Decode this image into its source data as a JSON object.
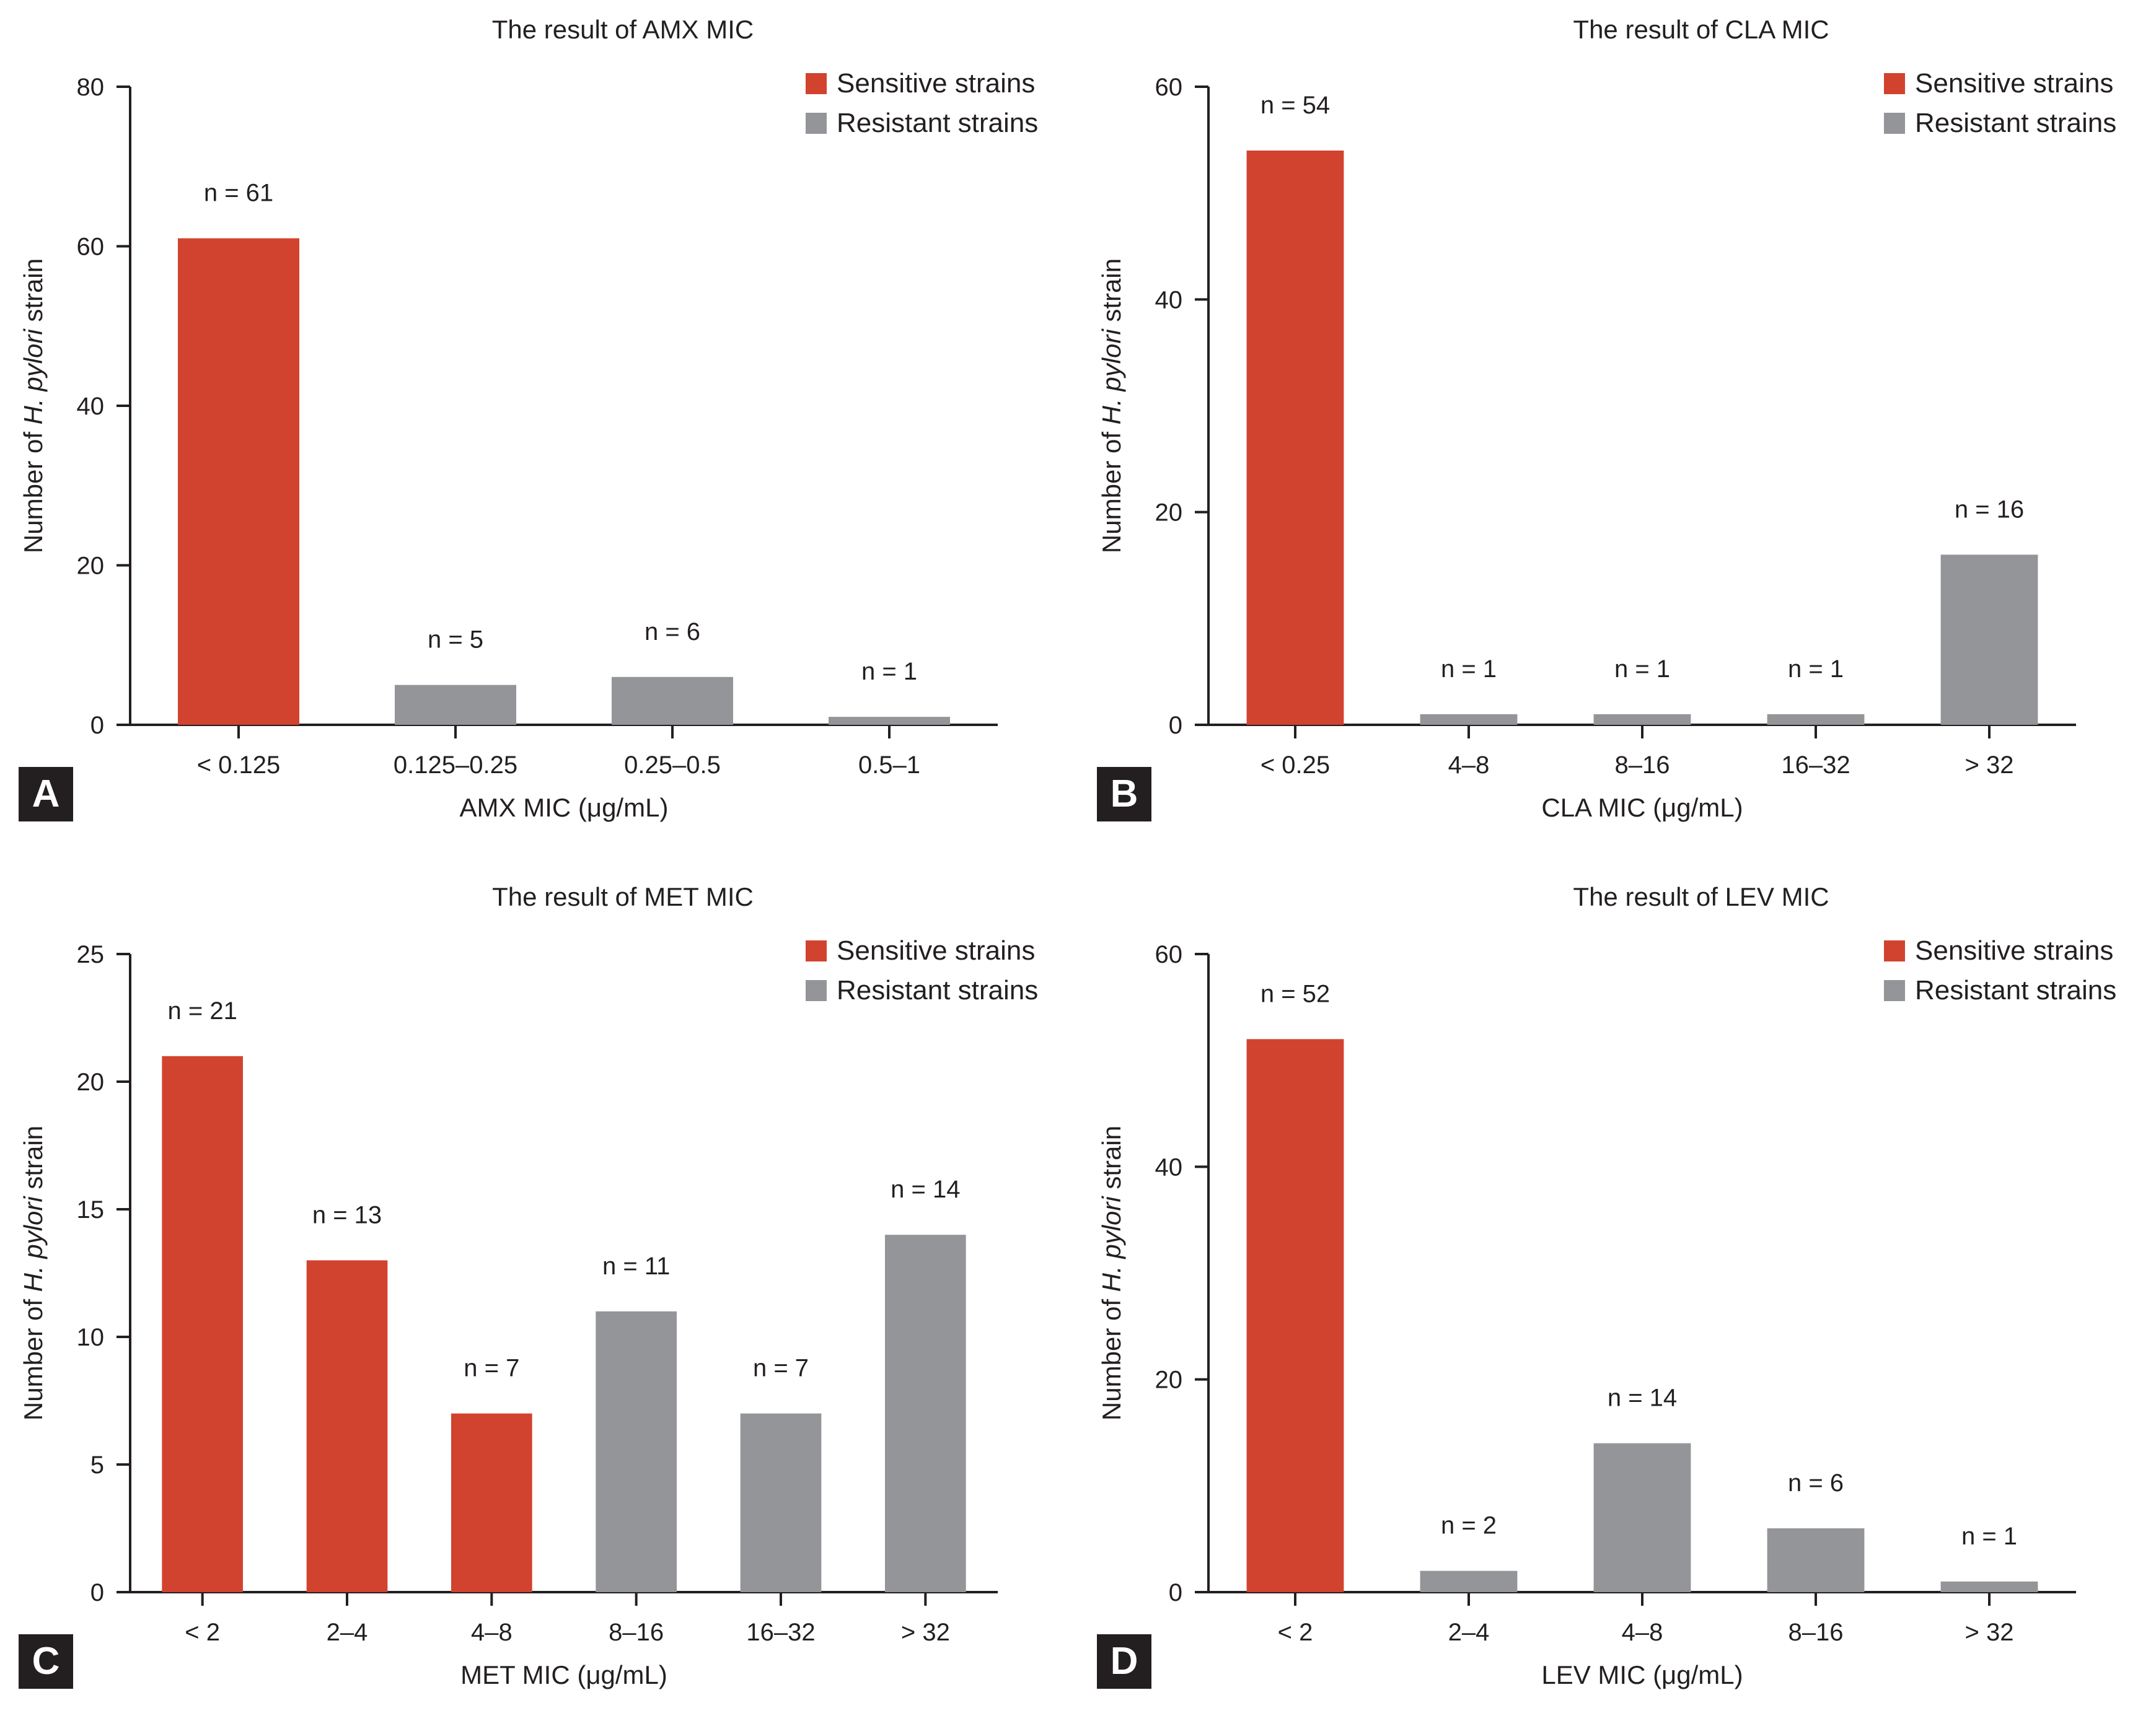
{
  "colors": {
    "sensitive": "#d1432f",
    "resistant": "#949599",
    "axis": "#231f20"
  },
  "chart_data": [
    {
      "panel": "A",
      "type": "bar",
      "title": "The result of AMX MIC",
      "xlabel": "AMX MIC (μg/mL)",
      "ylabel_parts": [
        "Number of ",
        "H. pylori",
        " strain"
      ],
      "ylim": [
        0,
        80
      ],
      "yticks": [
        0,
        20,
        40,
        60,
        80
      ],
      "categories": [
        "< 0.125",
        "0.125–0.25",
        "0.25–0.5",
        "0.5–1"
      ],
      "values": [
        61,
        5,
        6,
        1
      ],
      "groups": [
        "sensitive",
        "resistant",
        "resistant",
        "resistant"
      ],
      "data_labels": [
        "n = 61",
        "n = 5",
        "n = 6",
        "n = 1"
      ],
      "legend": [
        "Sensitive strains",
        "Resistant strains"
      ]
    },
    {
      "panel": "B",
      "type": "bar",
      "title": "The result of CLA MIC",
      "xlabel": "CLA MIC (μg/mL)",
      "ylabel_parts": [
        "Number of ",
        "H. pylori",
        " strain"
      ],
      "ylim": [
        0,
        60
      ],
      "yticks": [
        0,
        20,
        40,
        60
      ],
      "categories": [
        "< 0.25",
        "4–8",
        "8–16",
        "16–32",
        "> 32"
      ],
      "values": [
        54,
        1,
        1,
        1,
        16
      ],
      "groups": [
        "sensitive",
        "resistant",
        "resistant",
        "resistant",
        "resistant"
      ],
      "data_labels": [
        "n = 54",
        "n = 1",
        "n = 1",
        "n = 1",
        "n = 16"
      ],
      "legend": [
        "Sensitive strains",
        "Resistant strains"
      ]
    },
    {
      "panel": "C",
      "type": "bar",
      "title": "The result of MET MIC",
      "xlabel": "MET MIC (μg/mL)",
      "ylabel_parts": [
        "Number of ",
        "H. pylori",
        " strain"
      ],
      "ylim": [
        0,
        25
      ],
      "yticks": [
        0,
        5,
        10,
        15,
        20,
        25
      ],
      "categories": [
        "< 2",
        "2–4",
        "4–8",
        "8–16",
        "16–32",
        "> 32"
      ],
      "values": [
        21,
        13,
        7,
        11,
        7,
        14
      ],
      "groups": [
        "sensitive",
        "sensitive",
        "sensitive",
        "resistant",
        "resistant",
        "resistant"
      ],
      "data_labels": [
        "n = 21",
        "n = 13",
        "n = 7",
        "n = 11",
        "n = 7",
        "n = 14"
      ],
      "legend": [
        "Sensitive strains",
        "Resistant strains"
      ]
    },
    {
      "panel": "D",
      "type": "bar",
      "title": "The result of LEV MIC",
      "xlabel": "LEV MIC (μg/mL)",
      "ylabel_parts": [
        "Number of ",
        "H. pylori",
        " strain"
      ],
      "ylim": [
        0,
        60
      ],
      "yticks": [
        0,
        20,
        40,
        60
      ],
      "categories": [
        "< 2",
        "2–4",
        "4–8",
        "8–16",
        "> 32"
      ],
      "values": [
        52,
        2,
        14,
        6,
        1
      ],
      "groups": [
        "sensitive",
        "resistant",
        "resistant",
        "resistant",
        "resistant"
      ],
      "data_labels": [
        "n = 52",
        "n = 2",
        "n = 14",
        "n = 6",
        "n = 1"
      ],
      "legend": [
        "Sensitive strains",
        "Resistant strains"
      ]
    }
  ]
}
